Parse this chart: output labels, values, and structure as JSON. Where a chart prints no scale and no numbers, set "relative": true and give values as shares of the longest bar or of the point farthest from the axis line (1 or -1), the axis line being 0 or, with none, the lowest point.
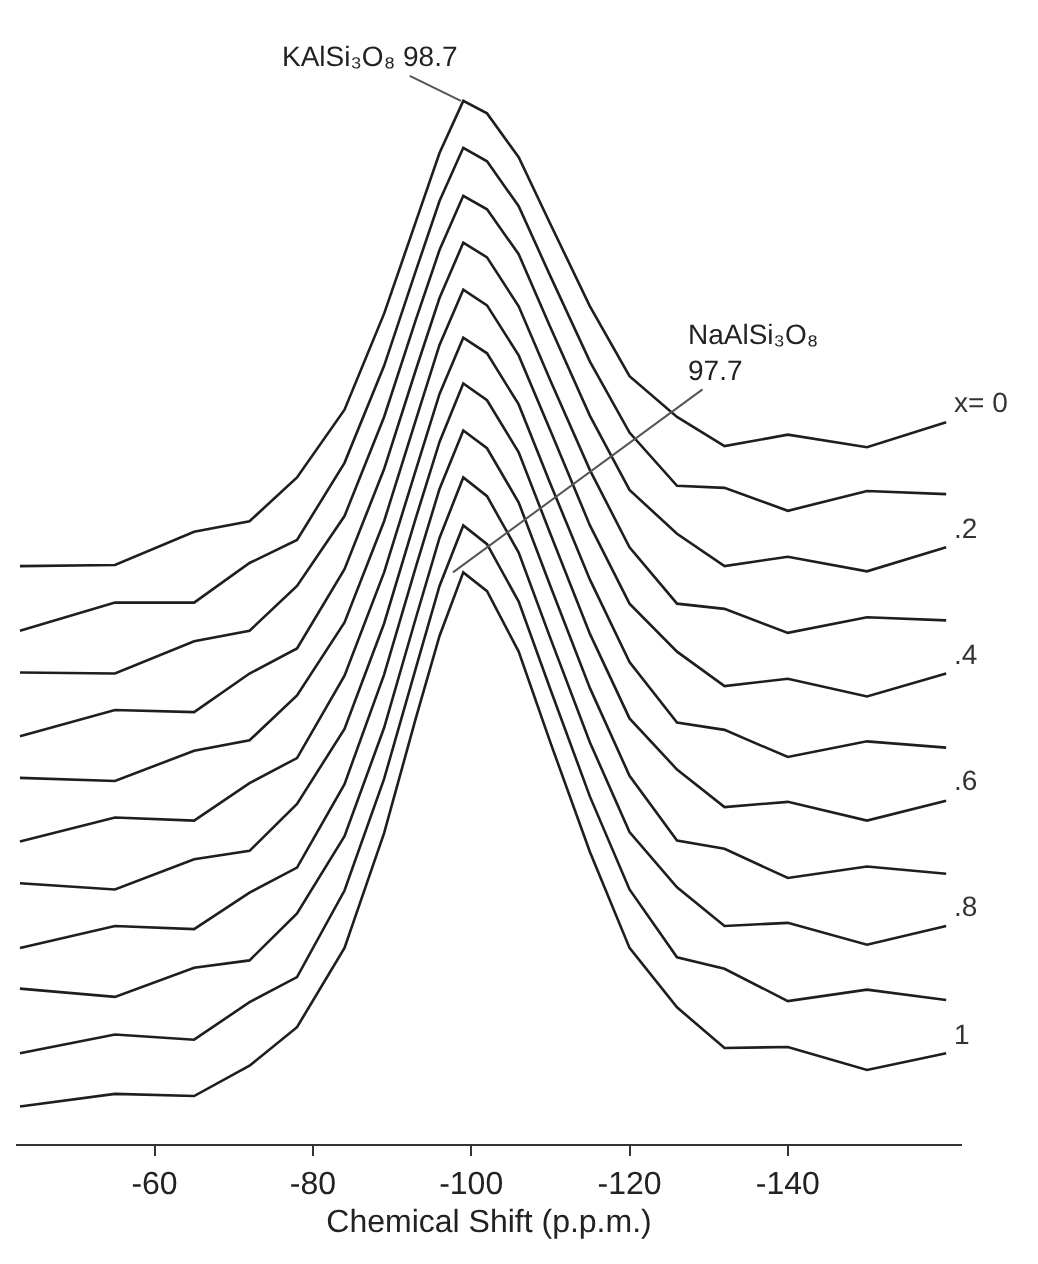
{
  "chart_data": {
    "type": "line",
    "relative": true,
    "xlabel": "Chemical Shift (p.p.m.)",
    "xlim": [
      -42.5,
      -162
    ],
    "xticks": [
      -60,
      -80,
      -100,
      -120,
      -140
    ],
    "legend": false,
    "marker": "none",
    "line_style": "solid",
    "x": [
      -43,
      -55,
      -65,
      -72,
      -78,
      -84,
      -89,
      -93,
      -96,
      -99,
      -102,
      -106,
      -110,
      -115,
      -120,
      -126,
      -132,
      -140,
      -150,
      -160
    ],
    "annotations": [
      {
        "text": "KAlSi₃O₈ 98.7",
        "x": -98.7,
        "y": 1.0
      },
      {
        "text": "NaAlSi₃O₈\n97.7",
        "x": -97.7,
        "y": 0.548
      }
    ],
    "series": [
      {
        "name": "x= 0",
        "color": "#1e1e1e",
        "values": [
          0.554,
          0.555,
          0.587,
          0.597,
          0.639,
          0.704,
          0.796,
          0.884,
          0.95,
          1.0,
          0.988,
          0.946,
          0.882,
          0.803,
          0.736,
          0.697,
          0.669,
          0.68,
          0.668,
          0.692
        ]
      },
      {
        "color": "#1e1e1e",
        "values": [
          0.492,
          0.519,
          0.519,
          0.557,
          0.579,
          0.653,
          0.746,
          0.837,
          0.904,
          0.955,
          0.942,
          0.899,
          0.832,
          0.75,
          0.682,
          0.631,
          0.629,
          0.607,
          0.626,
          0.623
        ]
      },
      {
        "name": ".2",
        "color": "#1e1e1e",
        "values": [
          0.452,
          0.451,
          0.482,
          0.492,
          0.535,
          0.602,
          0.697,
          0.79,
          0.857,
          0.909,
          0.896,
          0.853,
          0.783,
          0.698,
          0.627,
          0.585,
          0.554,
          0.563,
          0.549,
          0.572
        ]
      },
      {
        "color": "#1e1e1e",
        "values": [
          0.391,
          0.416,
          0.414,
          0.451,
          0.475,
          0.551,
          0.647,
          0.742,
          0.811,
          0.864,
          0.85,
          0.803,
          0.732,
          0.646,
          0.572,
          0.518,
          0.513,
          0.49,
          0.505,
          0.502
        ]
      },
      {
        "name": ".4",
        "color": "#1e1e1e",
        "values": [
          0.351,
          0.348,
          0.377,
          0.387,
          0.43,
          0.5,
          0.597,
          0.694,
          0.766,
          0.819,
          0.804,
          0.756,
          0.684,
          0.593,
          0.518,
          0.472,
          0.439,
          0.446,
          0.429,
          0.451
        ]
      },
      {
        "color": "#1e1e1e",
        "values": [
          0.29,
          0.313,
          0.31,
          0.346,
          0.37,
          0.449,
          0.548,
          0.646,
          0.719,
          0.773,
          0.758,
          0.709,
          0.633,
          0.541,
          0.462,
          0.404,
          0.397,
          0.371,
          0.386,
          0.38
        ]
      },
      {
        "name": ".6",
        "color": "#1e1e1e",
        "values": [
          0.25,
          0.244,
          0.273,
          0.281,
          0.326,
          0.398,
          0.499,
          0.6,
          0.673,
          0.729,
          0.713,
          0.663,
          0.585,
          0.489,
          0.408,
          0.359,
          0.323,
          0.328,
          0.31,
          0.329
        ]
      },
      {
        "color": "#1e1e1e",
        "values": [
          0.188,
          0.209,
          0.206,
          0.241,
          0.265,
          0.345,
          0.45,
          0.553,
          0.628,
          0.684,
          0.667,
          0.615,
          0.535,
          0.437,
          0.353,
          0.291,
          0.283,
          0.255,
          0.266,
          0.259
        ]
      },
      {
        "name": ".8",
        "color": "#1e1e1e",
        "values": [
          0.149,
          0.141,
          0.169,
          0.176,
          0.221,
          0.295,
          0.399,
          0.504,
          0.581,
          0.639,
          0.621,
          0.567,
          0.485,
          0.385,
          0.299,
          0.246,
          0.209,
          0.212,
          0.191,
          0.209
        ]
      },
      {
        "color": "#1e1e1e",
        "values": [
          0.087,
          0.105,
          0.1,
          0.136,
          0.16,
          0.243,
          0.35,
          0.456,
          0.535,
          0.593,
          0.575,
          0.52,
          0.436,
          0.333,
          0.244,
          0.179,
          0.168,
          0.137,
          0.148,
          0.138
        ]
      },
      {
        "name": "1",
        "color": "#1e1e1e",
        "values": [
          0.036,
          0.048,
          0.046,
          0.075,
          0.112,
          0.188,
          0.298,
          0.408,
          0.487,
          0.548,
          0.53,
          0.472,
          0.385,
          0.28,
          0.188,
          0.131,
          0.092,
          0.093,
          0.071,
          0.087
        ]
      }
    ]
  }
}
